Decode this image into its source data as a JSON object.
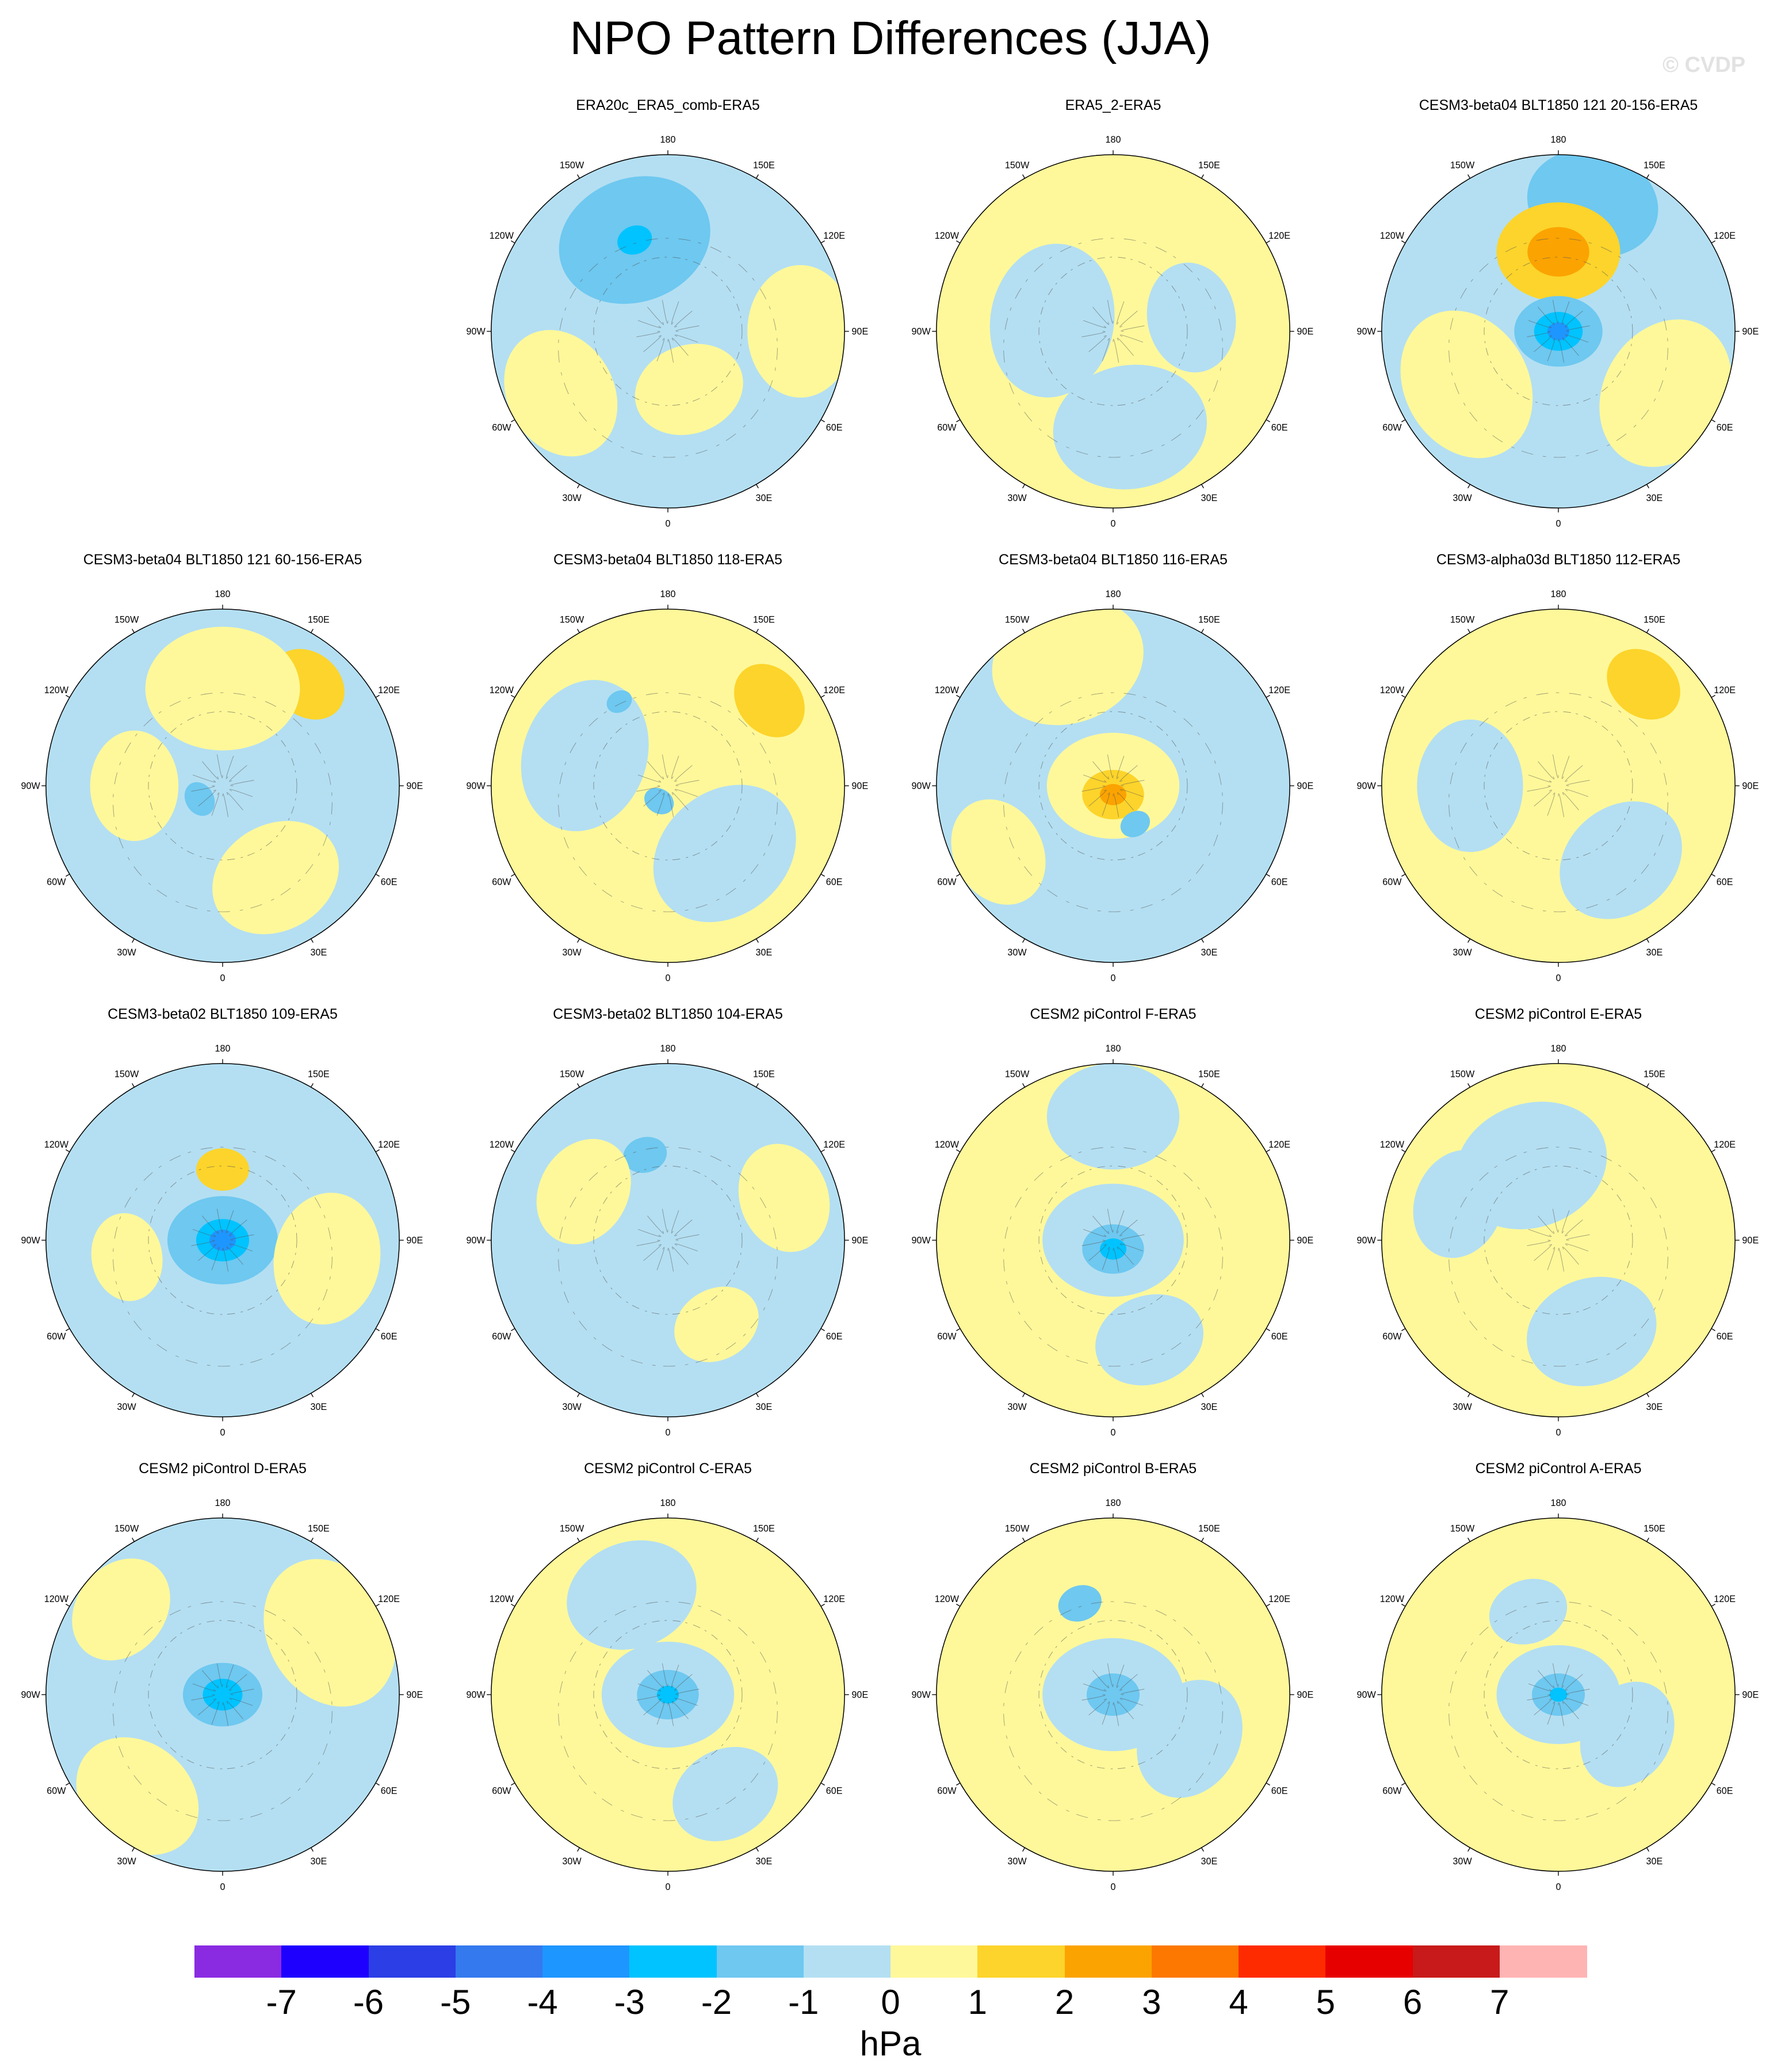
{
  "title": "NPO Pattern Differences (JJA)",
  "credit": "© CVDP",
  "lon_labels": [
    "180",
    "150E",
    "120E",
    "90E",
    "60E",
    "30E",
    "0",
    "30W",
    "60W",
    "90W",
    "120W",
    "150W"
  ],
  "panels": [
    {
      "title": "ERA20c_ERA5_comb-ERA5",
      "base": "neg",
      "blobs": [
        {
          "lon": 200,
          "r": 0.55,
          "s": 0.35,
          "level": -2
        },
        {
          "lon": 200,
          "r": 0.55,
          "s": 0.08,
          "level": -3
        },
        {
          "lon": 90,
          "r": 0.75,
          "s": 0.3,
          "level": 0
        },
        {
          "lon": 300,
          "r": 0.7,
          "s": 0.3,
          "level": 0
        },
        {
          "lon": 20,
          "r": 0.35,
          "s": 0.25,
          "level": 0
        }
      ]
    },
    {
      "title": "ERA5_2-ERA5",
      "base": "pos",
      "blobs": [
        {
          "lon": 260,
          "r": 0.35,
          "s": 0.35,
          "level": -1
        },
        {
          "lon": 10,
          "r": 0.55,
          "s": 0.35,
          "level": -1
        },
        {
          "lon": 100,
          "r": 0.45,
          "s": 0.25,
          "level": -1
        }
      ]
    },
    {
      "title": "CESM3-beta04 BLT1850 121 20-156-ERA5",
      "base": "neg",
      "blobs": [
        {
          "lon": 165,
          "r": 0.75,
          "s": 0.3,
          "level": -2
        },
        {
          "lon": 180,
          "r": 0.45,
          "s": 0.28,
          "level": 1
        },
        {
          "lon": 180,
          "r": 0.45,
          "s": 0.14,
          "level": 2
        },
        {
          "lon": 0,
          "r": 0.0,
          "s": 0.2,
          "level": -2
        },
        {
          "lon": 0,
          "r": 0.0,
          "s": 0.11,
          "level": -3
        },
        {
          "lon": 0,
          "r": 0.0,
          "s": 0.05,
          "level": -4
        },
        {
          "lon": 60,
          "r": 0.7,
          "s": 0.35,
          "level": 0
        },
        {
          "lon": 300,
          "r": 0.6,
          "s": 0.35,
          "level": 0
        }
      ]
    },
    {
      "title": "CESM3-beta04 BLT1850 121 60-156-ERA5",
      "base": "neg",
      "blobs": [
        {
          "lon": 140,
          "r": 0.75,
          "s": 0.18,
          "level": 1
        },
        {
          "lon": 180,
          "r": 0.55,
          "s": 0.35,
          "level": 0
        },
        {
          "lon": 30,
          "r": 0.6,
          "s": 0.3,
          "level": 0
        },
        {
          "lon": 270,
          "r": 0.5,
          "s": 0.25,
          "level": 0
        },
        {
          "lon": 300,
          "r": 0.15,
          "s": 0.08,
          "level": -2
        }
      ]
    },
    {
      "title": "CESM3-beta04 BLT1850 118-ERA5",
      "base": "pos",
      "blobs": [
        {
          "lon": 130,
          "r": 0.75,
          "s": 0.18,
          "level": 1
        },
        {
          "lon": 250,
          "r": 0.5,
          "s": 0.35,
          "level": -1
        },
        {
          "lon": 40,
          "r": 0.5,
          "s": 0.35,
          "level": -1
        },
        {
          "lon": 210,
          "r": 0.55,
          "s": 0.06,
          "level": -2
        },
        {
          "lon": 330,
          "r": 0.1,
          "s": 0.07,
          "level": -2
        }
      ]
    },
    {
      "title": "CESM3-beta04 BLT1850 116-ERA5",
      "base": "neg",
      "blobs": [
        {
          "lon": 0,
          "r": 0.0,
          "s": 0.3,
          "level": 0
        },
        {
          "lon": 0,
          "r": 0.05,
          "s": 0.14,
          "level": 1
        },
        {
          "lon": 0,
          "r": 0.05,
          "s": 0.06,
          "level": 2
        },
        {
          "lon": 200,
          "r": 0.75,
          "s": 0.35,
          "level": 0
        },
        {
          "lon": 300,
          "r": 0.75,
          "s": 0.25,
          "level": 0
        },
        {
          "lon": 30,
          "r": 0.25,
          "s": 0.07,
          "level": -2
        }
      ]
    },
    {
      "title": "CESM3-alpha03d BLT1850 112-ERA5",
      "base": "pos",
      "blobs": [
        {
          "lon": 140,
          "r": 0.75,
          "s": 0.18,
          "level": 1
        },
        {
          "lon": 270,
          "r": 0.5,
          "s": 0.3,
          "level": -1
        },
        {
          "lon": 40,
          "r": 0.55,
          "s": 0.3,
          "level": -1
        }
      ]
    },
    {
      "title": "CESM3-beta02 BLT1850 109-ERA5",
      "base": "neg",
      "blobs": [
        {
          "lon": 0,
          "r": 0.0,
          "s": 0.25,
          "level": -2
        },
        {
          "lon": 0,
          "r": 0.0,
          "s": 0.12,
          "level": -3
        },
        {
          "lon": 0,
          "r": 0.0,
          "s": 0.06,
          "level": -4
        },
        {
          "lon": 180,
          "r": 0.4,
          "s": 0.12,
          "level": 1
        },
        {
          "lon": 80,
          "r": 0.6,
          "s": 0.3,
          "level": 0
        },
        {
          "lon": 280,
          "r": 0.55,
          "s": 0.2,
          "level": 0
        }
      ]
    },
    {
      "title": "CESM3-beta02 BLT1850 104-ERA5",
      "base": "neg",
      "blobs": [
        {
          "lon": 195,
          "r": 0.5,
          "s": 0.1,
          "level": -2
        },
        {
          "lon": 240,
          "r": 0.55,
          "s": 0.25,
          "level": 0
        },
        {
          "lon": 30,
          "r": 0.55,
          "s": 0.2,
          "level": 0
        },
        {
          "lon": 110,
          "r": 0.7,
          "s": 0.25,
          "level": 0
        }
      ]
    },
    {
      "title": "CESM2 piControl F-ERA5",
      "base": "pos",
      "blobs": [
        {
          "lon": 0,
          "r": 0.0,
          "s": 0.32,
          "level": -1
        },
        {
          "lon": 0,
          "r": 0.05,
          "s": 0.14,
          "level": -2
        },
        {
          "lon": 0,
          "r": 0.05,
          "s": 0.06,
          "level": -3
        },
        {
          "lon": 180,
          "r": 0.7,
          "s": 0.3,
          "level": -1
        },
        {
          "lon": 20,
          "r": 0.6,
          "s": 0.25,
          "level": -1
        }
      ]
    },
    {
      "title": "CESM2 piControl E-ERA5",
      "base": "pos",
      "blobs": [
        {
          "lon": 200,
          "r": 0.45,
          "s": 0.35,
          "level": -1
        },
        {
          "lon": 20,
          "r": 0.55,
          "s": 0.3,
          "level": -1
        },
        {
          "lon": 250,
          "r": 0.6,
          "s": 0.25,
          "level": -1
        }
      ]
    },
    {
      "title": "CESM2 piControl D-ERA5",
      "base": "neg",
      "blobs": [
        {
          "lon": 0,
          "r": 0.0,
          "s": 0.18,
          "level": -2
        },
        {
          "lon": 0,
          "r": 0.0,
          "s": 0.09,
          "level": -3
        },
        {
          "lon": 120,
          "r": 0.7,
          "s": 0.35,
          "level": 0
        },
        {
          "lon": 320,
          "r": 0.75,
          "s": 0.3,
          "level": 0
        },
        {
          "lon": 230,
          "r": 0.75,
          "s": 0.25,
          "level": 0
        }
      ]
    },
    {
      "title": "CESM2 piControl C-ERA5",
      "base": "pos",
      "blobs": [
        {
          "lon": 0,
          "r": 0.0,
          "s": 0.3,
          "level": -1
        },
        {
          "lon": 0,
          "r": 0.0,
          "s": 0.14,
          "level": -2
        },
        {
          "lon": 0,
          "r": 0.0,
          "s": 0.05,
          "level": -3
        },
        {
          "lon": 200,
          "r": 0.6,
          "s": 0.3,
          "level": -1
        },
        {
          "lon": 30,
          "r": 0.65,
          "s": 0.25,
          "level": -1
        }
      ]
    },
    {
      "title": "CESM2 piControl B-ERA5",
      "base": "pos",
      "blobs": [
        {
          "lon": 0,
          "r": 0.0,
          "s": 0.32,
          "level": -1
        },
        {
          "lon": 0,
          "r": 0.0,
          "s": 0.12,
          "level": -2
        },
        {
          "lon": 200,
          "r": 0.55,
          "s": 0.1,
          "level": -2
        },
        {
          "lon": 60,
          "r": 0.5,
          "s": 0.28,
          "level": -1
        }
      ]
    },
    {
      "title": "CESM2 piControl A-ERA5",
      "base": "pos",
      "blobs": [
        {
          "lon": 0,
          "r": 0.0,
          "s": 0.28,
          "level": -1
        },
        {
          "lon": 0,
          "r": 0.0,
          "s": 0.12,
          "level": -2
        },
        {
          "lon": 0,
          "r": 0.0,
          "s": 0.04,
          "level": -3
        },
        {
          "lon": 200,
          "r": 0.5,
          "s": 0.18,
          "level": -1
        },
        {
          "lon": 60,
          "r": 0.45,
          "s": 0.25,
          "level": -1
        }
      ]
    }
  ],
  "colorbar": {
    "units": "hPa",
    "labels": [
      "-7",
      "-6",
      "-5",
      "-4",
      "-3",
      "-2",
      "-1",
      "0",
      "1",
      "2",
      "3",
      "4",
      "5",
      "6",
      "7"
    ],
    "colors": [
      "#8a2be2",
      "#1e00ff",
      "#2c3ee6",
      "#3479ee",
      "#1e96ff",
      "#00c3ff",
      "#6ec8f0",
      "#b4dff2",
      "#fff89a",
      "#fcd42b",
      "#fba300",
      "#fc7800",
      "#ff2b00",
      "#e70000",
      "#c81a1a",
      "#ffb4b4"
    ]
  }
}
